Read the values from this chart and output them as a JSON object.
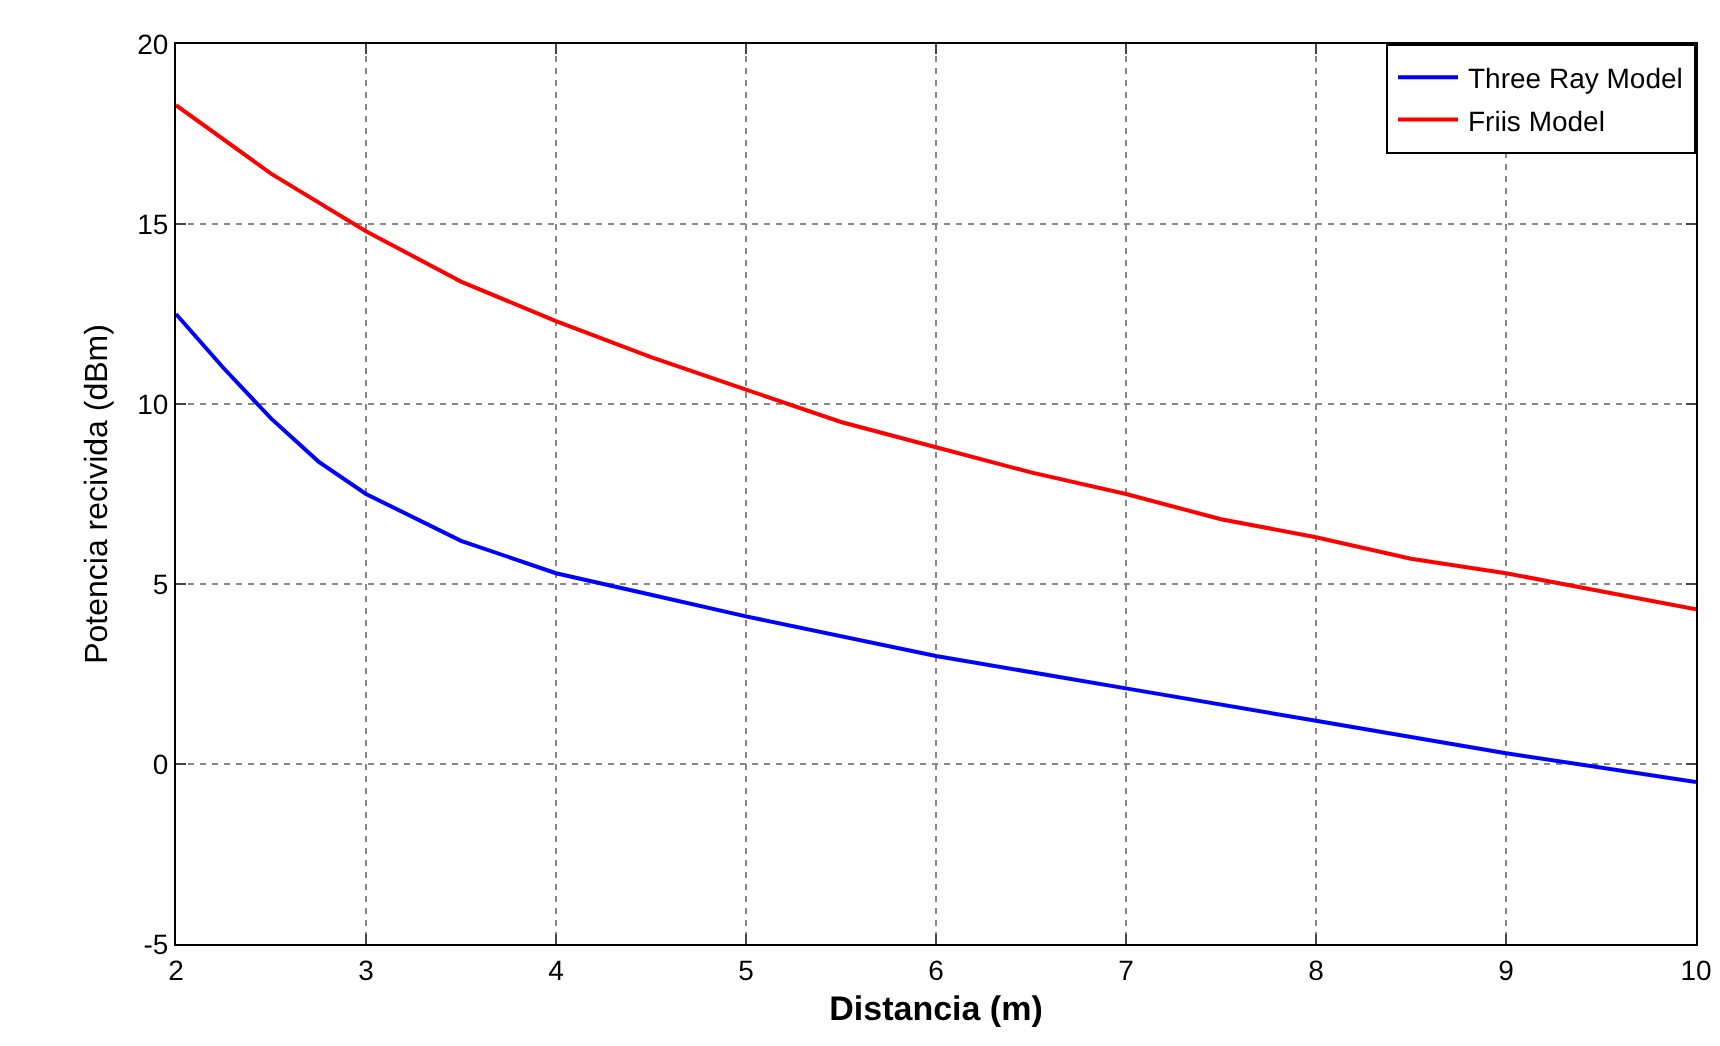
{
  "chart_data": {
    "type": "line",
    "xlabel": "Distancia (m)",
    "ylabel": "Potencia recivida (dBm)",
    "xlim": [
      2,
      10
    ],
    "xticks": [
      2,
      3,
      4,
      5,
      6,
      7,
      8,
      9,
      10
    ],
    "ylim": [
      -5,
      20
    ],
    "yticks": [
      -5,
      0,
      5,
      10,
      15,
      20
    ],
    "grid": true,
    "legend": "top right",
    "marker": "none",
    "line_style": "solid",
    "series": [
      {
        "name": "Three Ray Model",
        "color": "#0000ff",
        "x": [
          2,
          2.25,
          2.5,
          2.75,
          3,
          3.5,
          4,
          4.5,
          5,
          6,
          7,
          8,
          9,
          10
        ],
        "values": [
          12.5,
          11.0,
          9.6,
          8.4,
          7.5,
          6.2,
          5.3,
          4.7,
          4.1,
          3.0,
          2.1,
          1.2,
          0.3,
          -0.5
        ]
      },
      {
        "name": "Friis Model",
        "color": "#ff0000",
        "x": [
          2,
          2.5,
          3,
          3.5,
          4,
          4.5,
          5,
          5.5,
          6,
          6.5,
          7,
          7.5,
          8,
          8.5,
          9,
          9.5,
          10
        ],
        "values": [
          18.3,
          16.4,
          14.8,
          13.4,
          12.3,
          11.3,
          10.4,
          9.5,
          8.8,
          8.1,
          7.5,
          6.8,
          6.3,
          5.7,
          5.3,
          4.8,
          4.3
        ]
      }
    ]
  }
}
